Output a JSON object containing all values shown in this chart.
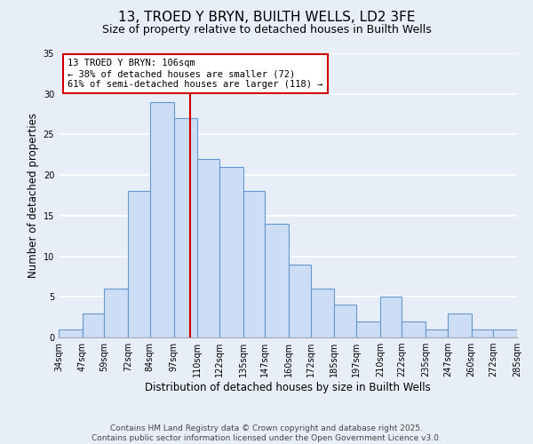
{
  "title": "13, TROED Y BRYN, BUILTH WELLS, LD2 3FE",
  "subtitle": "Size of property relative to detached houses in Builth Wells",
  "xlabel": "Distribution of detached houses by size in Builth Wells",
  "ylabel": "Number of detached properties",
  "bar_color": "#ccddf5",
  "bar_edgecolor": "#6699cc",
  "background_color": "#e8eef8",
  "grid_color": "#ffffff",
  "bins": [
    34,
    47,
    59,
    72,
    84,
    97,
    110,
    122,
    135,
    147,
    160,
    172,
    185,
    197,
    210,
    222,
    235,
    247,
    260,
    272,
    285
  ],
  "counts": [
    1,
    3,
    6,
    18,
    29,
    27,
    22,
    21,
    18,
    14,
    9,
    6,
    4,
    2,
    5,
    2,
    1,
    3,
    1,
    1
  ],
  "tick_labels": [
    "34sqm",
    "47sqm",
    "59sqm",
    "72sqm",
    "84sqm",
    "97sqm",
    "110sqm",
    "122sqm",
    "135sqm",
    "147sqm",
    "160sqm",
    "172sqm",
    "185sqm",
    "197sqm",
    "210sqm",
    "222sqm",
    "235sqm",
    "247sqm",
    "260sqm",
    "272sqm",
    "285sqm"
  ],
  "vline_x": 106,
  "vline_color": "#cc0000",
  "annotation_title": "13 TROED Y BRYN: 106sqm",
  "annotation_line1": "← 38% of detached houses are smaller (72)",
  "annotation_line2": "61% of semi-detached houses are larger (118) →",
  "annotation_box_edgecolor": "#cc0000",
  "ylim": [
    0,
    35
  ],
  "yticks": [
    0,
    5,
    10,
    15,
    20,
    25,
    30,
    35
  ],
  "footnote1": "Contains HM Land Registry data © Crown copyright and database right 2025.",
  "footnote2": "Contains public sector information licensed under the Open Government Licence v3.0.",
  "title_fontsize": 11,
  "subtitle_fontsize": 9,
  "axis_label_fontsize": 8.5,
  "tick_fontsize": 7,
  "annotation_fontsize": 7.5,
  "footnote_fontsize": 6.5
}
